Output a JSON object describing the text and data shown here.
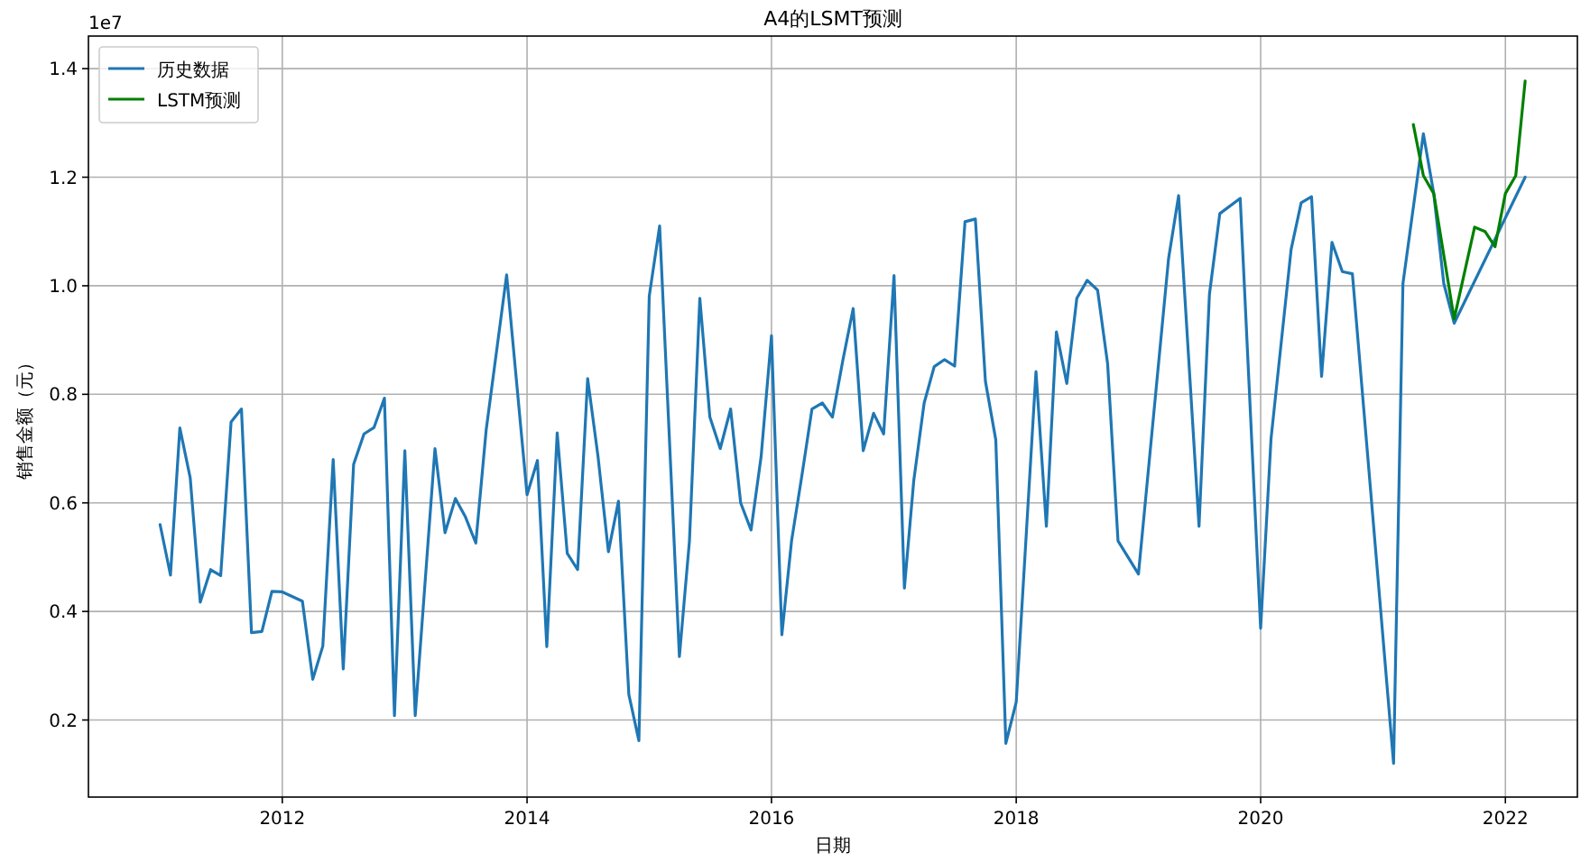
{
  "chart_data": {
    "type": "line",
    "title": "A4的LSMT预测",
    "xlabel": "日期",
    "ylabel": "销售金额（元）",
    "annotations": [
      "1e7"
    ],
    "xlim": [
      "2010-06-01",
      "2022-08-04"
    ],
    "ylim": [
      0.058,
      1.46
    ],
    "xticks": [
      "2012",
      "2014",
      "2016",
      "2018",
      "2020",
      "2022"
    ],
    "yticks": [
      0.2,
      0.4,
      0.6,
      0.8,
      {
        "value": 1.0,
        "label": "1.0"
      },
      1.2,
      1.4
    ],
    "grid": true,
    "legend": "top left",
    "line_style": "solid",
    "marker": "none",
    "series": [
      {
        "name": "历史数据",
        "color": "#1f77b4",
        "x": [
          "2011-01",
          "2011-02",
          "2011-03",
          "2011-04",
          "2011-05",
          "2011-06",
          "2011-07",
          "2011-08",
          "2011-09",
          "2011-10",
          "2011-11",
          "2011-12",
          "2012-01",
          "2012-03",
          "2012-04",
          "2012-05",
          "2012-06",
          "2012-07",
          "2012-08",
          "2012-09",
          "2012-10",
          "2012-11",
          "2012-12",
          "2013-01",
          "2013-02",
          "2013-04",
          "2013-05",
          "2013-06",
          "2013-07",
          "2013-08",
          "2013-09",
          "2013-11",
          "2014-01",
          "2014-02",
          "2014-03",
          "2014-04",
          "2014-05",
          "2014-06",
          "2014-07",
          "2014-08",
          "2014-09",
          "2014-10",
          "2014-11",
          "2014-12",
          "2015-01",
          "2015-02",
          "2015-04",
          "2015-05",
          "2015-06",
          "2015-07",
          "2015-08",
          "2015-09",
          "2015-10",
          "2015-11",
          "2015-12",
          "2016-01",
          "2016-02",
          "2016-03",
          "2016-04",
          "2016-05",
          "2016-06",
          "2016-07",
          "2016-08",
          "2016-09",
          "2016-10",
          "2016-11",
          "2016-12",
          "2017-01",
          "2017-02",
          "2017-03",
          "2017-04",
          "2017-05",
          "2017-06",
          "2017-07",
          "2017-08",
          "2017-09",
          "2017-10",
          "2017-11",
          "2017-12",
          "2018-01",
          "2018-03",
          "2018-04",
          "2018-05",
          "2018-06",
          "2018-07",
          "2018-08",
          "2018-09",
          "2018-10",
          "2018-11",
          "2019-01",
          "2019-04",
          "2019-05",
          "2019-07",
          "2019-08",
          "2019-09",
          "2019-11",
          "2020-01",
          "2020-02",
          "2020-04",
          "2020-05",
          "2020-06",
          "2020-07",
          "2020-08",
          "2020-09",
          "2020-10",
          "2021-02",
          "2021-03",
          "2021-05",
          "2021-06",
          "2021-07",
          "2021-08",
          "2022-03"
        ],
        "values": [
          0.56,
          0.467,
          0.738,
          0.646,
          0.417,
          0.477,
          0.466,
          0.749,
          0.773,
          0.361,
          0.363,
          0.437,
          0.436,
          0.419,
          0.275,
          0.336,
          0.68,
          0.294,
          0.671,
          0.727,
          0.739,
          0.793,
          0.208,
          0.696,
          0.208,
          0.7,
          0.545,
          0.608,
          0.574,
          0.526,
          0.735,
          1.02,
          0.615,
          0.678,
          0.335,
          0.729,
          0.507,
          0.477,
          0.829,
          0.685,
          0.51,
          0.603,
          0.247,
          0.162,
          0.981,
          1.11,
          0.317,
          0.53,
          0.977,
          0.758,
          0.7,
          0.773,
          0.6,
          0.55,
          0.685,
          0.908,
          0.357,
          0.53,
          0.651,
          0.773,
          0.784,
          0.758,
          0.862,
          0.958,
          0.696,
          0.765,
          0.727,
          1.019,
          0.443,
          0.641,
          0.784,
          0.851,
          0.864,
          0.852,
          1.118,
          1.123,
          0.824,
          0.716,
          0.157,
          0.233,
          0.842,
          0.557,
          0.915,
          0.82,
          0.977,
          1.01,
          0.992,
          0.856,
          0.53,
          0.469,
          1.05,
          1.166,
          0.557,
          0.984,
          1.133,
          1.161,
          0.369,
          0.718,
          1.067,
          1.153,
          1.164,
          0.833,
          1.08,
          1.026,
          1.022,
          0.12,
          1.004,
          1.28,
          1.17,
          1.004,
          0.931,
          1.2
        ]
      },
      {
        "name": "LSTM预测",
        "color": "#008000",
        "x": [
          "2021-04",
          "2021-05",
          "2021-06",
          "2021-08",
          "2021-10",
          "2021-11",
          "2021-12",
          "2022-01",
          "2022-02",
          "2022-03"
        ],
        "values": [
          1.297,
          1.203,
          1.17,
          0.939,
          1.108,
          1.1,
          1.072,
          1.17,
          1.203,
          1.377
        ]
      }
    ]
  }
}
